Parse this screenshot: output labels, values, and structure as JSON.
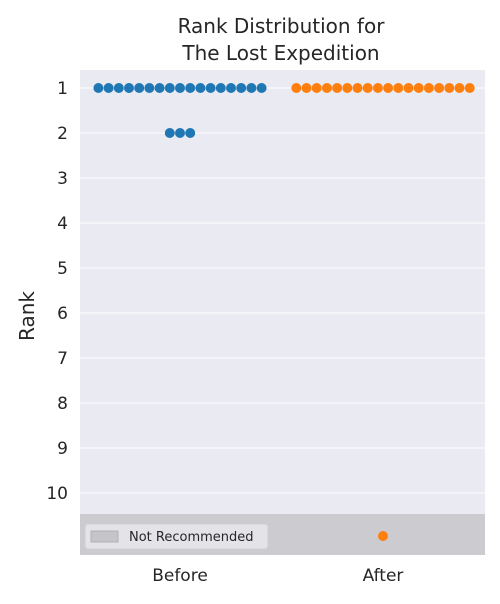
{
  "chart_data": {
    "type": "scatter",
    "title_lines": [
      "Rank Distribution for",
      "The Lost Expedition"
    ],
    "xlabel": "",
    "ylabel": "Rank",
    "categories": [
      "Before",
      "After"
    ],
    "ylim": [
      10.5,
      0.5
    ],
    "y_ticks": [
      1,
      2,
      3,
      4,
      5,
      6,
      7,
      8,
      9,
      10
    ],
    "grid": true,
    "colors": {
      "Before": "#1f77b4",
      "After": "#ff7f0e",
      "background": "#eaeaf2",
      "not_recommended_band": "#cbcbd0"
    },
    "not_recommended_label": "Not Recommended",
    "legend_position": "lower-left",
    "series": [
      {
        "category": "Before",
        "ranks": [
          1,
          1,
          1,
          1,
          1,
          1,
          1,
          1,
          1,
          1,
          1,
          1,
          1,
          1,
          1,
          1,
          1,
          2,
          2,
          2
        ],
        "not_recommended": 0
      },
      {
        "category": "After",
        "ranks": [
          1,
          1,
          1,
          1,
          1,
          1,
          1,
          1,
          1,
          1,
          1,
          1,
          1,
          1,
          1,
          1,
          1,
          1
        ],
        "not_recommended": 1
      }
    ]
  }
}
